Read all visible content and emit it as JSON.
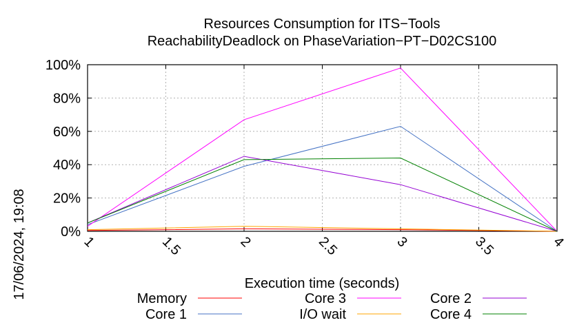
{
  "chart_data": {
    "type": "line",
    "title": "Resources Consumption for ITS−Tools",
    "subtitle": "ReachabilityDeadlock on PhaseVariation−PT−D02CS100",
    "xlabel": "Execution time (seconds)",
    "ylabel": "",
    "timestamp": "17/06/2024, 19:08",
    "xlim": [
      1,
      4
    ],
    "ylim": [
      0,
      100
    ],
    "xticks": [
      1,
      1.5,
      2,
      2.5,
      3,
      3.5,
      4
    ],
    "xtick_labels": [
      "1",
      "1.5",
      "2",
      "2.5",
      "3",
      "3.5",
      "4"
    ],
    "yticks": [
      0,
      20,
      40,
      60,
      80,
      100
    ],
    "ytick_labels": [
      "0%",
      "20%",
      "40%",
      "60%",
      "80%",
      "100%"
    ],
    "grid": true,
    "legend_position": "bottom",
    "x": [
      1,
      2,
      3,
      4
    ],
    "series": [
      {
        "name": "Memory",
        "color": "#ff0000",
        "values": [
          0.5,
          1.5,
          1.0,
          0
        ]
      },
      {
        "name": "Core 1",
        "color": "#4472c4",
        "values": [
          4,
          39,
          63,
          0
        ]
      },
      {
        "name": "Core 3",
        "color": "#ff00ff",
        "values": [
          3,
          67,
          98,
          0
        ]
      },
      {
        "name": "I/O wait",
        "color": "#ffa500",
        "values": [
          1,
          3,
          1.5,
          0
        ]
      },
      {
        "name": "Core 2",
        "color": "#9400d3",
        "values": [
          5,
          45,
          28,
          0
        ]
      },
      {
        "name": "Core 4",
        "color": "#008000",
        "values": [
          5,
          43,
          44,
          0
        ]
      }
    ]
  }
}
